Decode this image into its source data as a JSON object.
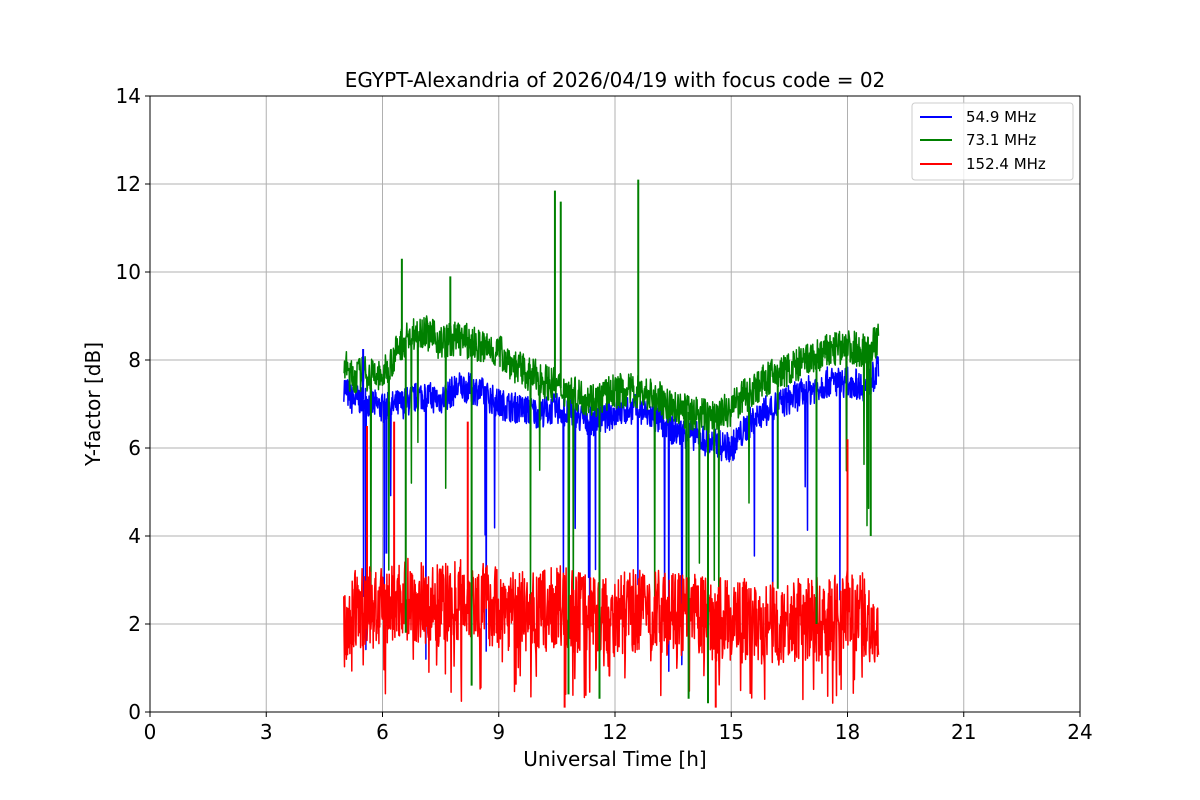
{
  "chart_data": {
    "type": "line",
    "title": "EGYPT-Alexandria of 2026/04/19 with focus code = 02",
    "xlabel": "Universal Time [h]",
    "ylabel": "Y-factor [dB]",
    "xlim": [
      0,
      24
    ],
    "ylim": [
      0,
      14
    ],
    "xticks": [
      "0",
      "3",
      "6",
      "9",
      "12",
      "15",
      "18",
      "21",
      "24"
    ],
    "yticks": [
      "0",
      "2",
      "4",
      "6",
      "8",
      "10",
      "12",
      "14"
    ],
    "grid": true,
    "legend_position": "top-right",
    "series": [
      {
        "name": " 54.9 MHz",
        "color": "#0000ff",
        "x": [
          5.0,
          5.2,
          5.5,
          6.0,
          6.5,
          7.0,
          7.5,
          8.0,
          8.5,
          9.0,
          9.5,
          10.0,
          10.5,
          11.0,
          11.5,
          12.0,
          12.5,
          13.0,
          13.5,
          14.0,
          14.5,
          15.0,
          15.5,
          16.0,
          16.5,
          17.0,
          17.5,
          18.0,
          18.5,
          18.8
        ],
        "values": [
          7.4,
          7.1,
          7.1,
          6.9,
          7.0,
          7.2,
          7.1,
          7.4,
          7.3,
          7.0,
          6.9,
          6.8,
          6.9,
          6.7,
          6.6,
          6.8,
          6.9,
          6.7,
          6.4,
          6.3,
          6.1,
          6.0,
          6.6,
          6.9,
          7.1,
          7.3,
          7.5,
          7.5,
          7.4,
          7.8
        ]
      },
      {
        "name": " 73.1 MHz",
        "color": "#008000",
        "x": [
          5.0,
          5.2,
          5.5,
          6.0,
          6.5,
          7.0,
          7.5,
          8.0,
          8.5,
          9.0,
          9.5,
          10.0,
          10.5,
          11.0,
          11.5,
          12.0,
          12.5,
          13.0,
          13.5,
          14.0,
          14.5,
          15.0,
          15.5,
          16.0,
          16.5,
          17.0,
          17.5,
          18.0,
          18.5,
          18.8
        ],
        "values": [
          7.9,
          7.6,
          7.7,
          7.6,
          8.4,
          8.7,
          8.4,
          8.5,
          8.3,
          8.2,
          7.8,
          7.6,
          7.4,
          7.2,
          7.1,
          7.3,
          7.3,
          7.2,
          6.9,
          6.8,
          6.7,
          6.9,
          7.3,
          7.6,
          7.8,
          8.0,
          8.2,
          8.3,
          8.2,
          8.5
        ]
      },
      {
        "name": "152.4 MHz",
        "color": "#ff0000",
        "x": [
          5.0,
          5.2,
          5.5,
          6.0,
          6.5,
          7.0,
          7.5,
          8.0,
          8.5,
          9.0,
          9.5,
          10.0,
          10.5,
          11.0,
          11.5,
          12.0,
          12.5,
          13.0,
          13.5,
          14.0,
          14.5,
          15.0,
          15.5,
          16.0,
          16.5,
          17.0,
          17.5,
          18.0,
          18.5,
          18.8
        ],
        "values": [
          1.8,
          2.2,
          2.4,
          2.3,
          2.6,
          2.5,
          2.4,
          2.6,
          2.5,
          2.4,
          2.3,
          2.2,
          2.4,
          2.3,
          2.3,
          2.2,
          2.3,
          2.3,
          2.2,
          2.2,
          2.1,
          2.1,
          2.1,
          2.0,
          2.1,
          2.1,
          2.2,
          2.3,
          2.2,
          1.5
        ]
      }
    ],
    "spikes": [
      {
        "series": 1,
        "x": 6.5,
        "value": 10.3
      },
      {
        "series": 1,
        "x": 7.75,
        "value": 9.9
      },
      {
        "series": 1,
        "x": 10.45,
        "value": 11.85
      },
      {
        "series": 1,
        "x": 10.6,
        "value": 11.6
      },
      {
        "series": 1,
        "x": 12.6,
        "value": 12.1
      },
      {
        "series": 0,
        "x": 5.5,
        "value": 8.25
      },
      {
        "series": 2,
        "x": 5.6,
        "value": 6.5
      },
      {
        "series": 2,
        "x": 6.3,
        "value": 6.6
      },
      {
        "series": 2,
        "x": 8.2,
        "value": 6.6
      },
      {
        "series": 2,
        "x": 18.0,
        "value": 6.2
      },
      {
        "series": 0,
        "x": 6.1,
        "value": 3.6
      },
      {
        "series": 1,
        "x": 6.6,
        "value": 1.8
      },
      {
        "series": 1,
        "x": 8.3,
        "value": 0.6
      },
      {
        "series": 1,
        "x": 10.8,
        "value": 0.4
      },
      {
        "series": 1,
        "x": 11.6,
        "value": 0.3
      },
      {
        "series": 1,
        "x": 13.9,
        "value": 0.3
      },
      {
        "series": 1,
        "x": 14.4,
        "value": 0.2
      },
      {
        "series": 1,
        "x": 16.2,
        "value": 2.8
      },
      {
        "series": 1,
        "x": 17.2,
        "value": 2.0
      },
      {
        "series": 1,
        "x": 18.6,
        "value": 4.0
      },
      {
        "series": 2,
        "x": 10.7,
        "value": 0.1
      },
      {
        "series": 2,
        "x": 14.6,
        "value": 0.1
      }
    ]
  }
}
